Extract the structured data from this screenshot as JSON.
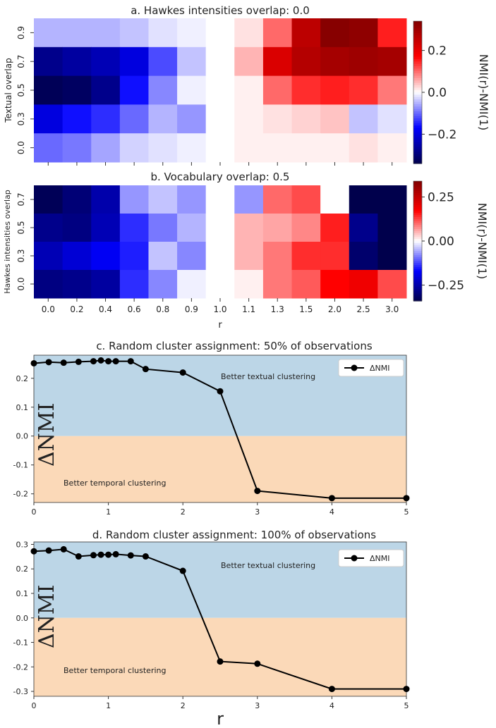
{
  "chart_data": [
    {
      "panel": "a",
      "type": "heatmap",
      "title": "a. Hawkes intensities overlap: 0.0",
      "ylabel": "Textual overlap",
      "colorbar_label": "NMI(r)-NMI(1)",
      "colorbar_ticks": [
        "0.2",
        "0.0",
        "−0.2"
      ],
      "colorbar_tick_values": [
        0.2,
        0.0,
        -0.2
      ],
      "vmin": -0.34,
      "vmax": 0.34,
      "row_labels": [
        "0.9",
        "0.7",
        "0.5",
        "0.3",
        "0.0"
      ],
      "column_labels": [
        "0.0",
        "0.2",
        "0.4",
        "0.6",
        "0.8",
        "0.9",
        "1.0",
        "1.1",
        "1.3",
        "1.5",
        "2.0",
        "2.5",
        "3.0"
      ],
      "values": [
        [
          -0.05,
          -0.05,
          -0.05,
          -0.04,
          -0.02,
          -0.01,
          0.0,
          0.02,
          0.1,
          0.26,
          0.33,
          0.32,
          0.15
        ],
        [
          -0.28,
          -0.26,
          -0.24,
          -0.2,
          -0.12,
          -0.04,
          0.0,
          0.05,
          0.22,
          0.27,
          0.29,
          0.3,
          0.29
        ],
        [
          -0.33,
          -0.32,
          -0.28,
          -0.16,
          -0.08,
          -0.01,
          0.0,
          0.01,
          0.1,
          0.14,
          0.15,
          0.14,
          0.09
        ],
        [
          -0.2,
          -0.16,
          -0.14,
          -0.1,
          -0.05,
          -0.07,
          0.0,
          0.01,
          0.02,
          0.03,
          0.04,
          -0.04,
          -0.02
        ],
        [
          -0.1,
          -0.09,
          -0.06,
          -0.03,
          -0.02,
          -0.01,
          0.0,
          0.01,
          0.01,
          0.01,
          0.01,
          0.02,
          0.01
        ]
      ]
    },
    {
      "panel": "b",
      "type": "heatmap",
      "title": "b. Vocabulary overlap: 0.5",
      "ylabel": "Hawkes intensities overlap",
      "xlabel": "r",
      "colorbar_label": "NMI(r)-NMI(1)",
      "colorbar_ticks": [
        "0.25",
        "0.00",
        "−0.25"
      ],
      "colorbar_tick_values": [
        0.25,
        0.0,
        -0.25
      ],
      "vmin": -0.34,
      "vmax": 0.34,
      "row_labels": [
        "0.7",
        "0.5",
        "0.3",
        "0.0"
      ],
      "column_labels": [
        "0.0",
        "0.2",
        "0.4",
        "0.6",
        "0.8",
        "0.9",
        "1.0",
        "1.1",
        "1.3",
        "1.5",
        "2.0",
        "2.5",
        "3.0"
      ],
      "values": [
        [
          -0.33,
          -0.3,
          -0.25,
          -0.07,
          -0.04,
          -0.07,
          0.0,
          -0.07,
          0.1,
          0.12,
          0.0,
          -0.34,
          -0.34
        ],
        [
          -0.28,
          -0.29,
          -0.24,
          -0.14,
          -0.09,
          -0.05,
          0.0,
          0.05,
          0.06,
          0.08,
          0.15,
          -0.28,
          -0.34
        ],
        [
          -0.24,
          -0.21,
          -0.18,
          -0.15,
          -0.04,
          -0.08,
          0.0,
          0.05,
          0.09,
          0.14,
          0.14,
          -0.31,
          -0.34
        ],
        [
          -0.29,
          -0.28,
          -0.26,
          -0.14,
          -0.08,
          -0.01,
          0.0,
          0.01,
          0.09,
          0.11,
          0.17,
          0.19,
          0.12
        ]
      ]
    },
    {
      "panel": "c",
      "type": "line",
      "title": "c. Random cluster assignment: 50% of observations",
      "ylabel": "ΔNMI",
      "legend": "ΔNMI",
      "xlim": [
        0,
        5
      ],
      "ylim": [
        -0.23,
        0.28
      ],
      "xticks": [
        "0",
        "1",
        "2",
        "3",
        "4",
        "5"
      ],
      "xtick_values": [
        0,
        1,
        2,
        3,
        4,
        5
      ],
      "yticks": [
        "0.2",
        "0.1",
        "0.0",
        "-0.1",
        "-0.2"
      ],
      "ytick_values": [
        0.2,
        0.1,
        0.0,
        -0.1,
        -0.2
      ],
      "annotation_top": "Better textual clustering",
      "annotation_bottom": "Better temporal clustering",
      "x": [
        0.0,
        0.2,
        0.4,
        0.6,
        0.8,
        0.9,
        1.0,
        1.1,
        1.3,
        1.5,
        2.0,
        2.5,
        3.0,
        4.0,
        5.0
      ],
      "y": [
        0.252,
        0.256,
        0.254,
        0.257,
        0.259,
        0.262,
        0.259,
        0.259,
        0.259,
        0.232,
        0.22,
        0.155,
        -0.19,
        -0.215,
        -0.215
      ]
    },
    {
      "panel": "d",
      "type": "line",
      "title": "d. Random cluster assignment: 100% of observations",
      "ylabel": "ΔNMI",
      "xlabel": "r",
      "legend": "ΔNMI",
      "xlim": [
        0,
        5
      ],
      "ylim": [
        -0.32,
        0.31
      ],
      "xticks": [
        "0",
        "1",
        "2",
        "3",
        "4",
        "5"
      ],
      "xtick_values": [
        0,
        1,
        2,
        3,
        4,
        5
      ],
      "yticks": [
        "0.3",
        "0.2",
        "0.1",
        "0.0",
        "-0.1",
        "-0.2",
        "-0.3"
      ],
      "ytick_values": [
        0.3,
        0.2,
        0.1,
        0.0,
        -0.1,
        -0.2,
        -0.3
      ],
      "annotation_top": "Better textual clustering",
      "annotation_bottom": "Better temporal clustering",
      "x": [
        0.0,
        0.2,
        0.4,
        0.6,
        0.8,
        0.9,
        1.0,
        1.1,
        1.3,
        1.5,
        2.0,
        2.5,
        3.0,
        4.0,
        5.0
      ],
      "y": [
        0.272,
        0.275,
        0.28,
        0.251,
        0.256,
        0.258,
        0.258,
        0.26,
        0.255,
        0.251,
        0.192,
        -0.178,
        -0.187,
        -0.29,
        -0.29
      ]
    }
  ],
  "colors": {
    "positive_region": "#bcd6e7",
    "negative_region": "#fbd9b8",
    "line": "#000000",
    "cmap_low": "#00004c",
    "cmap_mid": "#ffffff",
    "cmap_high": "#800000"
  }
}
